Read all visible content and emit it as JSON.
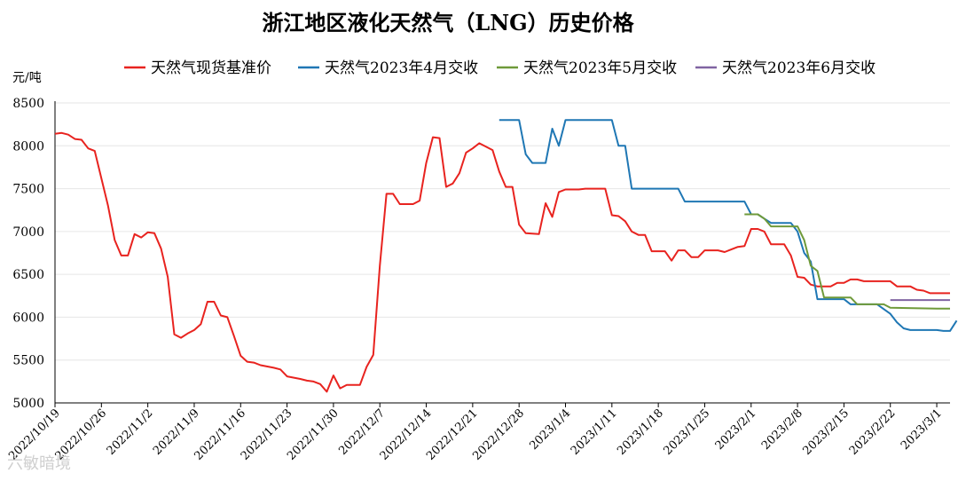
{
  "chart_data": {
    "type": "line",
    "title": "浙江地区液化天然气（LNG）历史价格",
    "ylabel": "元/吨",
    "ylim": [
      5000,
      8500
    ],
    "yticks": [
      5000,
      5500,
      6000,
      6500,
      7000,
      7500,
      8000,
      8500
    ],
    "xlim": [
      "2022-10-19",
      "2023-03-03"
    ],
    "xtick_labels": [
      "2022/10/19",
      "2022/10/26",
      "2022/11/2",
      "2022/11/9",
      "2022/11/16",
      "2022/11/23",
      "2022/11/30",
      "2022/12/7",
      "2022/12/14",
      "2022/12/21",
      "2022/12/28",
      "2023/1/4",
      "2023/1/11",
      "2023/1/18",
      "2023/1/25",
      "2023/2/1",
      "2023/2/8",
      "2023/2/15",
      "2023/2/22",
      "2023/3/1"
    ],
    "xtick_dates": [
      "2022-10-19",
      "2022-10-26",
      "2022-11-02",
      "2022-11-09",
      "2022-11-16",
      "2022-11-23",
      "2022-11-30",
      "2022-12-07",
      "2022-12-14",
      "2022-12-21",
      "2022-12-28",
      "2023-01-04",
      "2023-01-11",
      "2023-01-18",
      "2023-01-25",
      "2023-02-01",
      "2023-02-08",
      "2023-02-15",
      "2023-02-22",
      "2023-03-01"
    ],
    "grid": true,
    "legend_position": "top",
    "series": [
      {
        "name": "天然气现货基准价",
        "color": "#e8231f",
        "points": [
          [
            "2022-10-19",
            8140
          ],
          [
            "2022-10-20",
            8150
          ],
          [
            "2022-10-21",
            8130
          ],
          [
            "2022-10-22",
            8080
          ],
          [
            "2022-10-23",
            8070
          ],
          [
            "2022-10-24",
            7970
          ],
          [
            "2022-10-25",
            7940
          ],
          [
            "2022-10-27",
            7300
          ],
          [
            "2022-10-28",
            6900
          ],
          [
            "2022-10-29",
            6720
          ],
          [
            "2022-10-30",
            6720
          ],
          [
            "2022-10-31",
            6970
          ],
          [
            "2022-11-01",
            6930
          ],
          [
            "2022-11-02",
            6990
          ],
          [
            "2022-11-03",
            6980
          ],
          [
            "2022-11-04",
            6800
          ],
          [
            "2022-11-05",
            6470
          ],
          [
            "2022-11-06",
            5800
          ],
          [
            "2022-11-07",
            5760
          ],
          [
            "2022-11-08",
            5810
          ],
          [
            "2022-11-09",
            5850
          ],
          [
            "2022-11-10",
            5920
          ],
          [
            "2022-11-11",
            6180
          ],
          [
            "2022-11-12",
            6180
          ],
          [
            "2022-11-13",
            6020
          ],
          [
            "2022-11-14",
            6000
          ],
          [
            "2022-11-15",
            5780
          ],
          [
            "2022-11-16",
            5550
          ],
          [
            "2022-11-17",
            5480
          ],
          [
            "2022-11-18",
            5470
          ],
          [
            "2022-11-19",
            5440
          ],
          [
            "2022-11-21",
            5410
          ],
          [
            "2022-11-22",
            5390
          ],
          [
            "2022-11-23",
            5310
          ],
          [
            "2022-11-25",
            5280
          ],
          [
            "2022-11-26",
            5260
          ],
          [
            "2022-11-27",
            5250
          ],
          [
            "2022-11-28",
            5220
          ],
          [
            "2022-11-29",
            5130
          ],
          [
            "2022-11-30",
            5320
          ],
          [
            "2022-12-01",
            5170
          ],
          [
            "2022-12-02",
            5210
          ],
          [
            "2022-12-04",
            5210
          ],
          [
            "2022-12-05",
            5420
          ],
          [
            "2022-12-06",
            5560
          ],
          [
            "2022-12-07",
            6600
          ],
          [
            "2022-12-08",
            7440
          ],
          [
            "2022-12-09",
            7440
          ],
          [
            "2022-12-10",
            7320
          ],
          [
            "2022-12-12",
            7320
          ],
          [
            "2022-12-13",
            7360
          ],
          [
            "2022-12-14",
            7800
          ],
          [
            "2022-12-15",
            8100
          ],
          [
            "2022-12-16",
            8090
          ],
          [
            "2022-12-17",
            7520
          ],
          [
            "2022-12-18",
            7560
          ],
          [
            "2022-12-19",
            7680
          ],
          [
            "2022-12-20",
            7920
          ],
          [
            "2022-12-21",
            7970
          ],
          [
            "2022-12-22",
            8030
          ],
          [
            "2022-12-23",
            7990
          ],
          [
            "2022-12-24",
            7950
          ],
          [
            "2022-12-25",
            7700
          ],
          [
            "2022-12-26",
            7520
          ],
          [
            "2022-12-27",
            7520
          ],
          [
            "2022-12-28",
            7080
          ],
          [
            "2022-12-29",
            6980
          ],
          [
            "2022-12-31",
            6970
          ],
          [
            "2023-01-01",
            7330
          ],
          [
            "2023-01-02",
            7170
          ],
          [
            "2023-01-03",
            7460
          ],
          [
            "2023-01-04",
            7490
          ],
          [
            "2023-01-06",
            7490
          ],
          [
            "2023-01-07",
            7500
          ],
          [
            "2023-01-10",
            7500
          ],
          [
            "2023-01-11",
            7190
          ],
          [
            "2023-01-12",
            7180
          ],
          [
            "2023-01-13",
            7120
          ],
          [
            "2023-01-14",
            7000
          ],
          [
            "2023-01-15",
            6960
          ],
          [
            "2023-01-16",
            6960
          ],
          [
            "2023-01-17",
            6770
          ],
          [
            "2023-01-19",
            6770
          ],
          [
            "2023-01-20",
            6660
          ],
          [
            "2023-01-21",
            6780
          ],
          [
            "2023-01-22",
            6780
          ],
          [
            "2023-01-23",
            6700
          ],
          [
            "2023-01-24",
            6700
          ],
          [
            "2023-01-25",
            6780
          ],
          [
            "2023-01-27",
            6780
          ],
          [
            "2023-01-28",
            6760
          ],
          [
            "2023-01-29",
            6790
          ],
          [
            "2023-01-30",
            6820
          ],
          [
            "2023-01-31",
            6830
          ],
          [
            "2023-02-01",
            7030
          ],
          [
            "2023-02-02",
            7030
          ],
          [
            "2023-02-03",
            7000
          ],
          [
            "2023-02-04",
            6850
          ],
          [
            "2023-02-06",
            6850
          ],
          [
            "2023-02-07",
            6720
          ],
          [
            "2023-02-08",
            6470
          ],
          [
            "2023-02-09",
            6460
          ],
          [
            "2023-02-10",
            6380
          ],
          [
            "2023-02-11",
            6360
          ],
          [
            "2023-02-13",
            6360
          ],
          [
            "2023-02-14",
            6400
          ],
          [
            "2023-02-15",
            6400
          ],
          [
            "2023-02-16",
            6440
          ],
          [
            "2023-02-17",
            6440
          ],
          [
            "2023-02-18",
            6420
          ],
          [
            "2023-02-21",
            6420
          ],
          [
            "2023-02-22",
            6420
          ],
          [
            "2023-02-23",
            6360
          ],
          [
            "2023-02-25",
            6360
          ],
          [
            "2023-02-26",
            6320
          ],
          [
            "2023-02-27",
            6310
          ],
          [
            "2023-02-28",
            6280
          ],
          [
            "2023-03-03",
            6280
          ]
        ]
      },
      {
        "name": "天然气2023年4月交收",
        "color": "#1f77b4",
        "points": [
          [
            "2022-12-25",
            8300
          ],
          [
            "2022-12-28",
            8300
          ],
          [
            "2022-12-29",
            7900
          ],
          [
            "2022-12-30",
            7800
          ],
          [
            "2023-01-01",
            7800
          ],
          [
            "2023-01-02",
            8200
          ],
          [
            "2023-01-03",
            8000
          ],
          [
            "2023-01-04",
            8300
          ],
          [
            "2023-01-11",
            8300
          ],
          [
            "2023-01-12",
            8000
          ],
          [
            "2023-01-13",
            8000
          ],
          [
            "2023-01-14",
            7500
          ],
          [
            "2023-01-21",
            7500
          ],
          [
            "2023-01-22",
            7350
          ],
          [
            "2023-01-31",
            7350
          ],
          [
            "2023-02-01",
            7200
          ],
          [
            "2023-02-02",
            7200
          ],
          [
            "2023-02-03",
            7150
          ],
          [
            "2023-02-04",
            7100
          ],
          [
            "2023-02-07",
            7100
          ],
          [
            "2023-02-08",
            7000
          ],
          [
            "2023-02-09",
            6750
          ],
          [
            "2023-02-10",
            6650
          ],
          [
            "2023-02-11",
            6210
          ],
          [
            "2023-02-15",
            6210
          ],
          [
            "2023-02-16",
            6150
          ],
          [
            "2023-02-20",
            6150
          ],
          [
            "2023-02-22",
            6040
          ],
          [
            "2023-02-23",
            5940
          ],
          [
            "2023-02-24",
            5870
          ],
          [
            "2023-02-25",
            5850
          ],
          [
            "2023-03-01",
            5850
          ],
          [
            "2023-03-02",
            5840
          ],
          [
            "2023-03-03",
            5840
          ],
          [
            "2023-03-04",
            5960
          ]
        ]
      },
      {
        "name": "天然气2023年5月交收",
        "color": "#6f9a3a",
        "points": [
          [
            "2023-01-31",
            7200
          ],
          [
            "2023-02-02",
            7200
          ],
          [
            "2023-02-03",
            7150
          ],
          [
            "2023-02-04",
            7060
          ],
          [
            "2023-02-08",
            7060
          ],
          [
            "2023-02-09",
            6900
          ],
          [
            "2023-02-10",
            6600
          ],
          [
            "2023-02-11",
            6540
          ],
          [
            "2023-02-12",
            6230
          ],
          [
            "2023-02-16",
            6230
          ],
          [
            "2023-02-17",
            6150
          ],
          [
            "2023-02-21",
            6150
          ],
          [
            "2023-02-22",
            6110
          ],
          [
            "2023-03-01",
            6100
          ],
          [
            "2023-03-03",
            6100
          ]
        ]
      },
      {
        "name": "天然气2023年6月交收",
        "color": "#8064a2",
        "points": [
          [
            "2023-02-22",
            6200
          ],
          [
            "2023-03-03",
            6200
          ]
        ]
      }
    ]
  },
  "watermark": "六敏暗境"
}
